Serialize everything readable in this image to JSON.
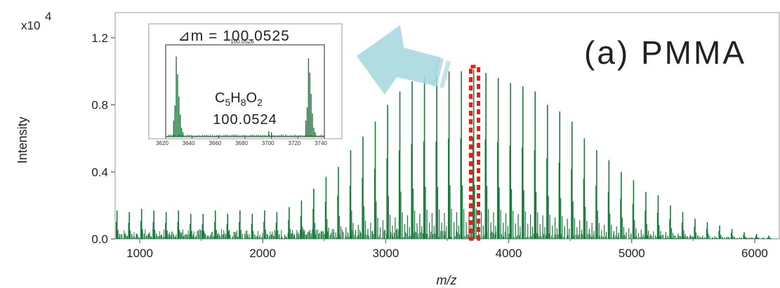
{
  "chart_data": [
    {
      "type": "bar",
      "title": "(a) PMMA",
      "xlabel": "m/z",
      "ylabel": "Intensity",
      "y_multiplier": "x10",
      "y_exponent": "4",
      "xlim": [
        800,
        6200
      ],
      "ylim": [
        0,
        1.35
      ],
      "xticks": [
        "1000",
        "2000",
        "3000",
        "4000",
        "5000",
        "6000"
      ],
      "yticks": [
        "0.0",
        "0.4",
        "0.8",
        "1.2"
      ],
      "repeat_unit_mz": 100.0525,
      "highlight_range": [
        3600,
        3800
      ],
      "series": [
        {
          "color": "#1a7a3c",
          "x": [
            815,
            915,
            1015,
            1115,
            1215,
            1315,
            1415,
            1515,
            1615,
            1715,
            1815,
            1915,
            2015,
            2115,
            2215,
            2315,
            2415,
            2515,
            2615,
            2715,
            2815,
            2915,
            3015,
            3115,
            3215,
            3315,
            3415,
            3515,
            3615,
            3715,
            3815,
            3915,
            4015,
            4115,
            4215,
            4315,
            4415,
            4515,
            4615,
            4715,
            4815,
            4915,
            5015,
            5115,
            5215,
            5315,
            5415,
            5515,
            5615,
            5715,
            5815,
            5915,
            6015,
            6115
          ],
          "values": [
            0.17,
            0.16,
            0.18,
            0.17,
            0.16,
            0.17,
            0.15,
            0.15,
            0.17,
            0.15,
            0.17,
            0.15,
            0.17,
            0.16,
            0.19,
            0.23,
            0.3,
            0.37,
            0.43,
            0.53,
            0.61,
            0.7,
            0.8,
            0.88,
            0.94,
            0.97,
            0.97,
            1.0,
            1.0,
            1.01,
            0.99,
            0.96,
            0.93,
            0.91,
            0.88,
            0.8,
            0.76,
            0.7,
            0.6,
            0.53,
            0.47,
            0.4,
            0.35,
            0.28,
            0.26,
            0.2,
            0.16,
            0.12,
            0.1,
            0.08,
            0.06,
            0.04,
            0.03,
            0.02
          ]
        }
      ]
    },
    {
      "type": "bar",
      "role": "inset",
      "xlim": [
        3620,
        3740
      ],
      "xticks": [
        "3620",
        "3640",
        "3660",
        "3680",
        "3700",
        "3720",
        "3740"
      ],
      "delta_label": "⊿m = 100.0525",
      "delta_small": "100.0526",
      "formula": {
        "C": "C",
        "c_sub": "5",
        "H": "H",
        "h_sub": "8",
        "O": "O",
        "o_sub": "2"
      },
      "mass": "100.0524",
      "series": [
        {
          "color": "#1a7a3c",
          "x": [
            3626,
            3627,
            3628,
            3629,
            3630,
            3631,
            3632,
            3633,
            3726,
            3727,
            3728,
            3729,
            3730,
            3731,
            3732,
            3733,
            3698,
            3700
          ],
          "values": [
            0.18,
            0.35,
            0.9,
            0.7,
            0.45,
            0.25,
            0.1,
            0.05,
            0.18,
            0.33,
            0.88,
            0.72,
            0.48,
            0.26,
            0.1,
            0.05,
            0.06,
            0.05
          ]
        }
      ]
    }
  ]
}
